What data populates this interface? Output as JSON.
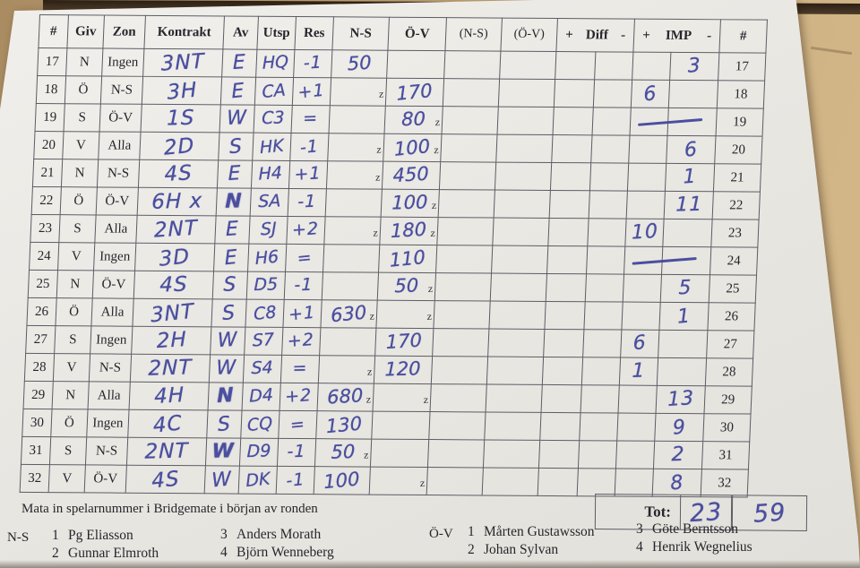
{
  "colors": {
    "ink": "#4a4f9f",
    "paper": "#e9e7e2",
    "wood": "#c4a676",
    "line": "#5c5c64"
  },
  "z_mark": "z",
  "header": {
    "columns": [
      "#",
      "Giv",
      "Zon",
      "Kontrakt",
      "Av",
      "Utsp",
      "Res",
      "N-S",
      "Ö-V",
      "(N-S)",
      "(Ö-V)",
      "#"
    ],
    "diff": {
      "plus": "+",
      "label": "Diff",
      "minus": "-"
    },
    "imp": {
      "plus": "+",
      "label": "IMP",
      "minus": "-"
    }
  },
  "rows": [
    {
      "num": "17",
      "giv": "N",
      "zon": "Ingen",
      "kontrakt": "3NT",
      "av": "E",
      "av_bold": false,
      "utsp": "HQ",
      "res": "-1",
      "ns": "50",
      "ns_z": false,
      "ov": "",
      "ov_z": false,
      "imp_plus": "",
      "imp_minus": "3",
      "imp_dash": false
    },
    {
      "num": "18",
      "giv": "Ö",
      "zon": "N-S",
      "kontrakt": "3H",
      "av": "E",
      "av_bold": false,
      "utsp": "CA",
      "res": "+1",
      "ns": "",
      "ns_z": true,
      "ov": "170",
      "ov_z": false,
      "imp_plus": "6",
      "imp_minus": "",
      "imp_dash": false
    },
    {
      "num": "19",
      "giv": "S",
      "zon": "Ö-V",
      "kontrakt": "1S",
      "av": "W",
      "av_bold": false,
      "utsp": "C3",
      "res": "=",
      "ns": "",
      "ns_z": false,
      "ov": "80",
      "ov_z": true,
      "imp_plus": "",
      "imp_minus": "",
      "imp_dash": true
    },
    {
      "num": "20",
      "giv": "V",
      "zon": "Alla",
      "kontrakt": "2D",
      "av": "S",
      "av_bold": false,
      "utsp": "HK",
      "res": "-1",
      "ns": "",
      "ns_z": true,
      "ov": "100",
      "ov_z": true,
      "imp_plus": "",
      "imp_minus": "6",
      "imp_dash": false
    },
    {
      "num": "21",
      "giv": "N",
      "zon": "N-S",
      "kontrakt": "4S",
      "av": "E",
      "av_bold": false,
      "utsp": "H4",
      "res": "+1",
      "ns": "",
      "ns_z": true,
      "ov": "450",
      "ov_z": false,
      "imp_plus": "",
      "imp_minus": "1",
      "imp_dash": false
    },
    {
      "num": "22",
      "giv": "Ö",
      "zon": "Ö-V",
      "kontrakt": "6H x",
      "av": "N",
      "av_bold": true,
      "utsp": "SA",
      "res": "-1",
      "ns": "",
      "ns_z": false,
      "ov": "100",
      "ov_z": true,
      "imp_plus": "",
      "imp_minus": "11",
      "imp_dash": false
    },
    {
      "num": "23",
      "giv": "S",
      "zon": "Alla",
      "kontrakt": "2NT",
      "av": "E",
      "av_bold": false,
      "utsp": "SJ",
      "res": "+2",
      "ns": "",
      "ns_z": true,
      "ov": "180",
      "ov_z": true,
      "imp_plus": "10",
      "imp_minus": "",
      "imp_dash": false
    },
    {
      "num": "24",
      "giv": "V",
      "zon": "Ingen",
      "kontrakt": "3D",
      "av": "E",
      "av_bold": false,
      "utsp": "H6",
      "res": "=",
      "ns": "",
      "ns_z": false,
      "ov": "110",
      "ov_z": false,
      "imp_plus": "",
      "imp_minus": "",
      "imp_dash": true
    },
    {
      "num": "25",
      "giv": "N",
      "zon": "Ö-V",
      "kontrakt": "4S",
      "av": "S",
      "av_bold": false,
      "utsp": "D5",
      "res": "-1",
      "ns": "",
      "ns_z": false,
      "ov": "50",
      "ov_z": true,
      "imp_plus": "",
      "imp_minus": "5",
      "imp_dash": false
    },
    {
      "num": "26",
      "giv": "Ö",
      "zon": "Alla",
      "kontrakt": "3NT",
      "av": "S",
      "av_bold": false,
      "utsp": "C8",
      "res": "+1",
      "ns": "630",
      "ns_z": true,
      "ov": "",
      "ov_z": true,
      "imp_plus": "",
      "imp_minus": "1",
      "imp_dash": false
    },
    {
      "num": "27",
      "giv": "S",
      "zon": "Ingen",
      "kontrakt": "2H",
      "av": "W",
      "av_bold": false,
      "utsp": "S7",
      "res": "+2",
      "ns": "",
      "ns_z": false,
      "ov": "170",
      "ov_z": false,
      "imp_plus": "6",
      "imp_minus": "",
      "imp_dash": false
    },
    {
      "num": "28",
      "giv": "V",
      "zon": "N-S",
      "kontrakt": "2NT",
      "av": "W",
      "av_bold": false,
      "utsp": "S4",
      "res": "=",
      "ns": "",
      "ns_z": true,
      "ov": "120",
      "ov_z": false,
      "imp_plus": "1",
      "imp_minus": "",
      "imp_dash": false
    },
    {
      "num": "29",
      "giv": "N",
      "zon": "Alla",
      "kontrakt": "4H",
      "av": "N",
      "av_bold": true,
      "utsp": "D4",
      "res": "+2",
      "ns": "680",
      "ns_z": true,
      "ov": "",
      "ov_z": true,
      "imp_plus": "",
      "imp_minus": "13",
      "imp_dash": false
    },
    {
      "num": "30",
      "giv": "Ö",
      "zon": "Ingen",
      "kontrakt": "4C",
      "av": "S",
      "av_bold": false,
      "utsp": "CQ",
      "res": "=",
      "ns": "130",
      "ns_z": false,
      "ov": "",
      "ov_z": false,
      "imp_plus": "",
      "imp_minus": "9",
      "imp_dash": false
    },
    {
      "num": "31",
      "giv": "S",
      "zon": "N-S",
      "kontrakt": "2NT",
      "av": "W",
      "av_bold": true,
      "utsp": "D9",
      "res": "-1",
      "ns": "50",
      "ns_z": true,
      "ov": "",
      "ov_z": false,
      "imp_plus": "",
      "imp_minus": "2",
      "imp_dash": false
    },
    {
      "num": "32",
      "giv": "V",
      "zon": "Ö-V",
      "kontrakt": "4S",
      "av": "W",
      "av_bold": false,
      "utsp": "DK",
      "res": "-1",
      "ns": "100",
      "ns_z": false,
      "ov": "",
      "ov_z": true,
      "imp_plus": "",
      "imp_minus": "8",
      "imp_dash": false
    }
  ],
  "total": {
    "label": "Tot:",
    "plus": "23",
    "minus": "59"
  },
  "footer": {
    "instruction": "Mata in spelarnummer i Bridgemate i början av ronden",
    "ns_label": "N-S",
    "ov_label": "Ö-V",
    "ns_players": [
      {
        "n": "1",
        "name": "Pg Eliasson"
      },
      {
        "n": "2",
        "name": "Gunnar Elmroth"
      },
      {
        "n": "3",
        "name": "Anders Morath"
      },
      {
        "n": "4",
        "name": "Björn Wenneberg"
      }
    ],
    "ov_players": [
      {
        "n": "1",
        "name": "Mårten Gustawsson"
      },
      {
        "n": "2",
        "name": "Johan Sylvan"
      },
      {
        "n": "3",
        "name": "Göte Berntsson"
      },
      {
        "n": "4",
        "name": "Henrik Wegnelius"
      }
    ]
  }
}
